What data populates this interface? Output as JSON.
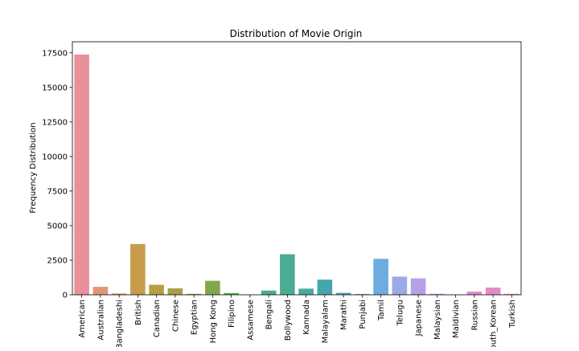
{
  "chart_data": {
    "type": "bar",
    "title": "Distribution of Movie Origin",
    "xlabel": "",
    "ylabel": "Frequency Distribution",
    "ylim": [
      0,
      18300
    ],
    "yticks": [
      0,
      2500,
      5000,
      7500,
      10000,
      12500,
      15000,
      17500
    ],
    "categories": [
      "American",
      "Australian",
      "Bangladeshi",
      "British",
      "Canadian",
      "Chinese",
      "Egyptian",
      "Hong Kong",
      "Filipino",
      "Assamese",
      "Bengali",
      "Bollywood",
      "Kannada",
      "Malayalam",
      "Marathi",
      "Punjabi",
      "Tamil",
      "Telugu",
      "Japanese",
      "Malaysian",
      "Maldivian",
      "Russian",
      "South_Korean",
      "Turkish"
    ],
    "values": [
      17380,
      576,
      87,
      3670,
      723,
      463,
      67,
      1011,
      128,
      9,
      306,
      2931,
      444,
      1095,
      141,
      50,
      2599,
      1311,
      1188,
      70,
      4,
      232,
      522,
      70
    ],
    "colors": [
      "#e8919b",
      "#e19775",
      "#ce9548",
      "#c89c4b",
      "#b89e43",
      "#a8a04a",
      "#90a249",
      "#82a748",
      "#56ae4b",
      "#4ba96d",
      "#4dae86",
      "#4cac92",
      "#4aaa9c",
      "#46a6a9",
      "#49a6b1",
      "#51a9bf",
      "#6eabdf",
      "#9aaae8",
      "#b5a0e8",
      "#d490e6",
      "#e686de",
      "#e58bcf",
      "#e48bc6",
      "#e795b0"
    ],
    "grid": false,
    "legend": "none"
  }
}
